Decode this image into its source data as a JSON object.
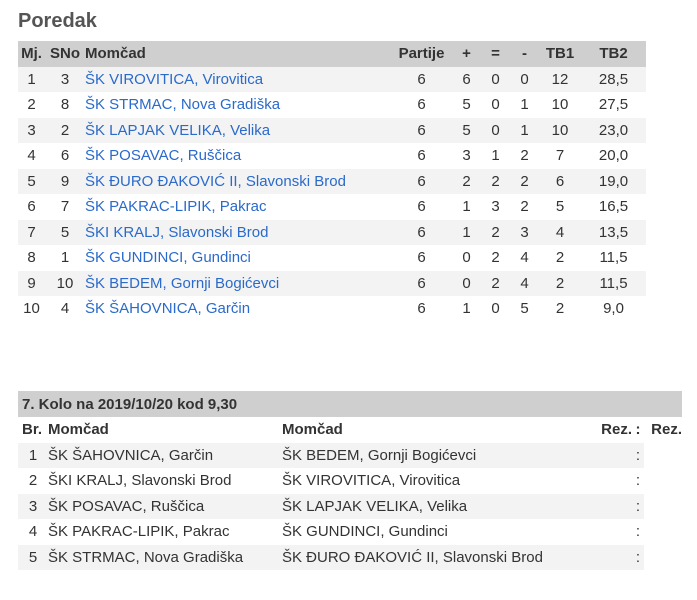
{
  "standings": {
    "title": "Poredak",
    "headers": [
      "Mj.",
      "SNo",
      "Momčad",
      "Partije",
      "+",
      "=",
      "-",
      "TB1",
      "TB2"
    ],
    "rows": [
      [
        "1",
        "3",
        "ŠK VIROVITICA, Virovitica",
        "6",
        "6",
        "0",
        "0",
        "12",
        "28,5"
      ],
      [
        "2",
        "8",
        "ŠK STRMAC, Nova Gradiška",
        "6",
        "5",
        "0",
        "1",
        "10",
        "27,5"
      ],
      [
        "3",
        "2",
        "ŠK LAPJAK VELIKA, Velika",
        "6",
        "5",
        "0",
        "1",
        "10",
        "23,0"
      ],
      [
        "4",
        "6",
        "ŠK POSAVAC, Ruščica",
        "6",
        "3",
        "1",
        "2",
        "7",
        "20,0"
      ],
      [
        "5",
        "9",
        "ŠK ĐURO ĐAKOVIĆ II, Slavonski Brod",
        "6",
        "2",
        "2",
        "2",
        "6",
        "19,0"
      ],
      [
        "6",
        "7",
        "ŠK PAKRAC-LIPIK, Pakrac",
        "6",
        "1",
        "3",
        "2",
        "5",
        "16,5"
      ],
      [
        "7",
        "5",
        "ŠKI KRALJ, Slavonski Brod",
        "6",
        "1",
        "2",
        "3",
        "4",
        "13,5"
      ],
      [
        "8",
        "1",
        "ŠK GUNDINCI, Gundinci",
        "6",
        "0",
        "2",
        "4",
        "2",
        "11,5"
      ],
      [
        "9",
        "10",
        "ŠK BEDEM, Gornji Bogićevci",
        "6",
        "0",
        "2",
        "4",
        "2",
        "11,5"
      ],
      [
        "10",
        "4",
        "ŠK ŠAHOVNICA, Garčin",
        "6",
        "1",
        "0",
        "5",
        "2",
        "9,0"
      ]
    ]
  },
  "round": {
    "caption": "7. Kolo na 2019/10/20 kod 9,30",
    "headers": [
      "Br.",
      "Momčad",
      "Momčad",
      "Rez.",
      ":",
      "Rez."
    ],
    "rows": [
      [
        "1",
        "ŠK ŠAHOVNICA, Garčin",
        "ŠK BEDEM, Gornji Bogićevci",
        ":"
      ],
      [
        "2",
        "ŠKI KRALJ, Slavonski Brod",
        "ŠK VIROVITICA, Virovitica",
        ":"
      ],
      [
        "3",
        "ŠK POSAVAC, Ruščica",
        "ŠK LAPJAK VELIKA, Velika",
        ":"
      ],
      [
        "4",
        "ŠK PAKRAC-LIPIK, Pakrac",
        "ŠK GUNDINCI, Gundinci",
        ":"
      ],
      [
        "5",
        "ŠK STRMAC, Nova Gradiška",
        "ŠK ĐURO ĐAKOVIĆ II, Slavonski Brod",
        ":"
      ]
    ]
  },
  "colors": {
    "header_bg": "#cfcfcf",
    "stripe_bg": "#f3f3f3",
    "link": "#2a6acb"
  }
}
